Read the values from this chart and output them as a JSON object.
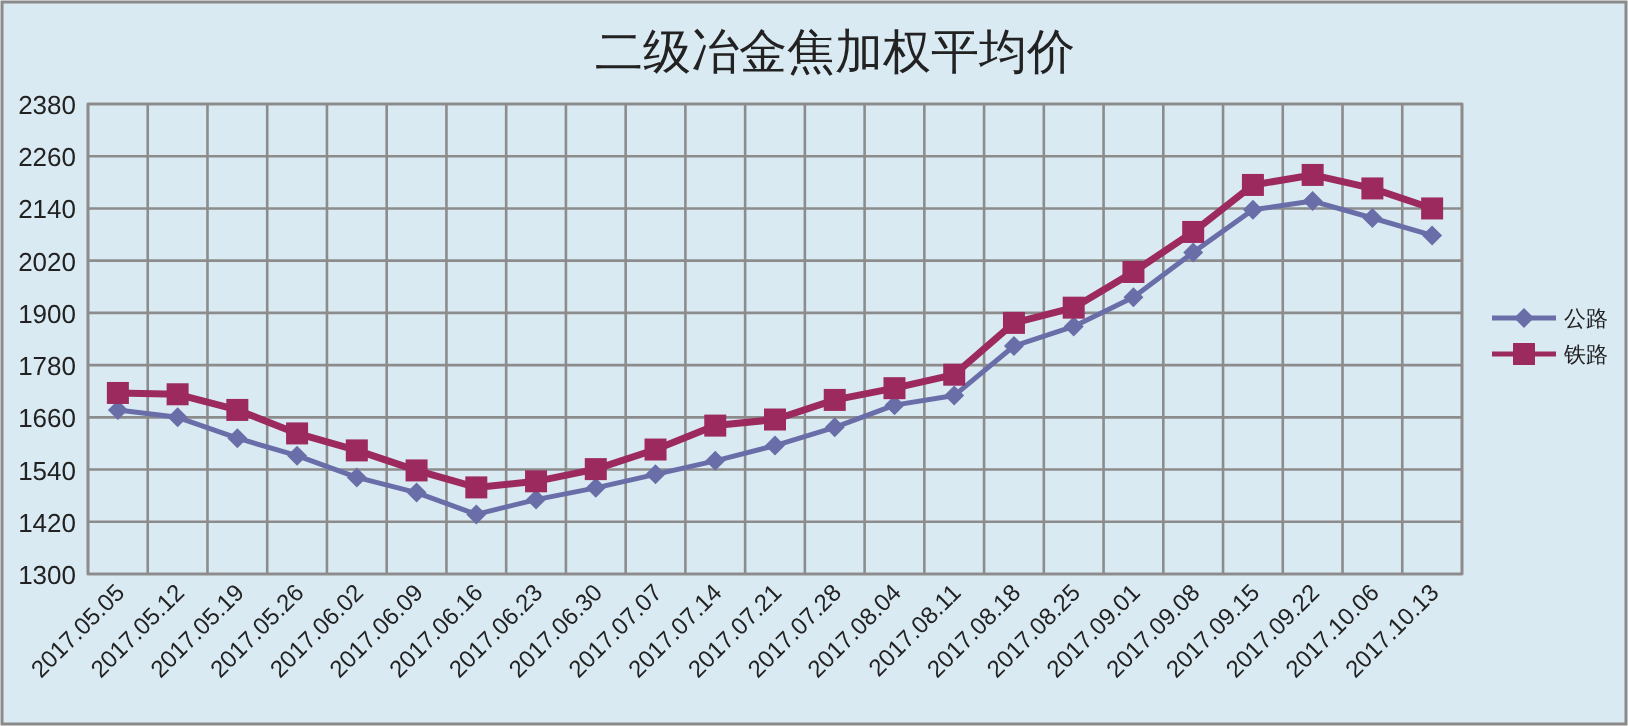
{
  "chart_data": {
    "type": "line",
    "title": "二级冶金焦加权平均价",
    "categories": [
      "2017.05.05",
      "2017.05.12",
      "2017.05.19",
      "2017.05.26",
      "2017.06.02",
      "2017.06.09",
      "2017.06.16",
      "2017.06.23",
      "2017.06.30",
      "2017.07.07",
      "2017.07.14",
      "2017.07.21",
      "2017.07.28",
      "2017.08.04",
      "2017.08.11",
      "2017.08.18",
      "2017.08.25",
      "2017.09.01",
      "2017.09.08",
      "2017.09.15",
      "2017.09.22",
      "2017.10.06",
      "2017.10.13"
    ],
    "series": [
      {
        "name": "公路",
        "color": "#6a6ea8",
        "marker": "diamond",
        "values": [
          1677,
          1660,
          1612,
          1572,
          1522,
          1487,
          1437,
          1471,
          1498,
          1529,
          1560,
          1595,
          1637,
          1688,
          1710,
          1824,
          1869,
          1936,
          2039,
          2137,
          2157,
          2118,
          2078
        ]
      },
      {
        "name": "铁路",
        "color": "#9c2a5e",
        "marker": "square",
        "values": [
          1716,
          1713,
          1677,
          1623,
          1584,
          1538,
          1499,
          1513,
          1541,
          1586,
          1641,
          1655,
          1700,
          1727,
          1758,
          1877,
          1912,
          1994,
          2086,
          2194,
          2217,
          2186,
          2140
        ]
      }
    ],
    "ylim": [
      1300,
      2380
    ],
    "yticks": [
      1300,
      1420,
      1540,
      1660,
      1780,
      1900,
      2020,
      2140,
      2260,
      2380
    ],
    "grid": true,
    "legend": "right"
  }
}
